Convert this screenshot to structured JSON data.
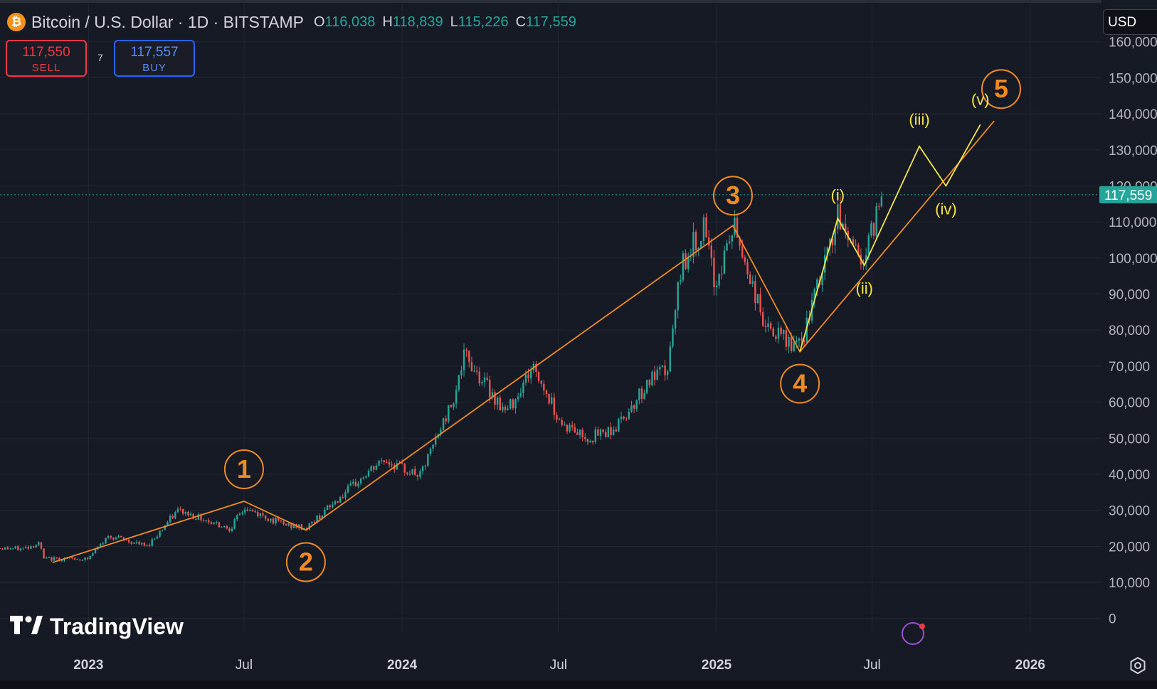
{
  "header": {
    "coin_icon": "₿",
    "title": "Bitcoin / U.S. Dollar · 1D · BITSTAMP",
    "ohlc": [
      {
        "k": "O",
        "v": "116,038"
      },
      {
        "k": "H",
        "v": "118,839"
      },
      {
        "k": "L",
        "v": "115,226"
      },
      {
        "k": "C",
        "v": "117,559"
      }
    ]
  },
  "trade": {
    "sell_price": "117,550",
    "sell_label": "SELL",
    "spread": "7",
    "buy_price": "117,557",
    "buy_label": "BUY"
  },
  "currency": "USD",
  "logo_text": "TradingView",
  "colors": {
    "background": "#161a25",
    "grid": "#232735",
    "up": "#26a69a",
    "down": "#ef5350",
    "wave_orange": "#f08a24",
    "wave_yellow": "#f5e642",
    "price_line": "#26a69a"
  },
  "chart_data": {
    "type": "candlestick",
    "symbol": "BTCUSD",
    "interval": "1D",
    "y_axis": {
      "ticks": [
        "0",
        "10,000",
        "20,000",
        "30,000",
        "40,000",
        "50,000",
        "60,000",
        "70,000",
        "80,000",
        "90,000",
        "100,000",
        "110,000",
        "120,000",
        "130,000",
        "140,000",
        "150,000",
        "160,000"
      ],
      "tick_values": [
        0,
        10000,
        20000,
        30000,
        40000,
        50000,
        60000,
        70000,
        80000,
        90000,
        100000,
        110000,
        120000,
        130000,
        140000,
        150000,
        160000
      ],
      "ylim": [
        -4000,
        170000
      ]
    },
    "x_axis": {
      "labels": [
        {
          "label": "2023",
          "date": "2023-01-01",
          "bold": true
        },
        {
          "label": "Jul",
          "date": "2023-07-01",
          "bold": false
        },
        {
          "label": "2024",
          "date": "2024-01-01",
          "bold": true
        },
        {
          "label": "Jul",
          "date": "2024-07-01",
          "bold": false
        },
        {
          "label": "2025",
          "date": "2025-01-01",
          "bold": true
        },
        {
          "label": "Jul",
          "date": "2025-07-01",
          "bold": false
        },
        {
          "label": "2026",
          "date": "2026-01-01",
          "bold": true
        }
      ],
      "range": [
        "2022-09-20",
        "2026-03-25"
      ]
    },
    "last_price": {
      "value": 117559,
      "label": "117,559"
    },
    "price_path": [
      [
        "2022-09-20",
        19500
      ],
      [
        "2022-10-15",
        19300
      ],
      [
        "2022-11-05",
        20800
      ],
      [
        "2022-11-10",
        16500
      ],
      [
        "2022-12-31",
        16500
      ],
      [
        "2023-01-25",
        23000
      ],
      [
        "2023-03-10",
        20000
      ],
      [
        "2023-04-15",
        30000
      ],
      [
        "2023-06-15",
        25000
      ],
      [
        "2023-07-01",
        30500
      ],
      [
        "2023-08-17",
        26000
      ],
      [
        "2023-09-11",
        25000
      ],
      [
        "2023-10-25",
        34500
      ],
      [
        "2023-12-10",
        44000
      ],
      [
        "2024-01-22",
        39500
      ],
      [
        "2024-02-28",
        60000
      ],
      [
        "2024-03-14",
        73000
      ],
      [
        "2024-05-01",
        57000
      ],
      [
        "2024-06-01",
        70000
      ],
      [
        "2024-07-05",
        54000
      ],
      [
        "2024-08-05",
        50000
      ],
      [
        "2024-09-06",
        53000
      ],
      [
        "2024-10-15",
        66000
      ],
      [
        "2024-11-05",
        69000
      ],
      [
        "2024-11-22",
        99000
      ],
      [
        "2024-12-17",
        108000
      ],
      [
        "2024-12-30",
        92000
      ],
      [
        "2025-01-21",
        109000
      ],
      [
        "2025-02-28",
        80000
      ],
      [
        "2025-04-08",
        75000
      ],
      [
        "2025-05-22",
        111000
      ],
      [
        "2025-06-22",
        99000
      ],
      [
        "2025-07-14",
        120000
      ]
    ],
    "waves": [
      {
        "label": "1",
        "date": "2023-07-01",
        "value": 32500
      },
      {
        "label": "2",
        "date": "2023-09-11",
        "value": 24500
      },
      {
        "label": "3",
        "date": "2025-01-20",
        "value": 109000
      },
      {
        "label": "4",
        "date": "2025-04-08",
        "value": 74000
      },
      {
        "label": "5",
        "date": "2025-11-10",
        "value": 138000
      }
    ],
    "subwaves": [
      {
        "label": "(i)",
        "date": "2025-05-22",
        "value": 111000
      },
      {
        "label": "(ii)",
        "date": "2025-06-22",
        "value": 98000
      },
      {
        "label": "(iii)",
        "date": "2025-08-25",
        "value": 131000
      },
      {
        "label": "(iv)",
        "date": "2025-09-25",
        "value": 120000
      },
      {
        "label": "(v)",
        "date": "2025-11-04",
        "value": 137000
      }
    ]
  }
}
